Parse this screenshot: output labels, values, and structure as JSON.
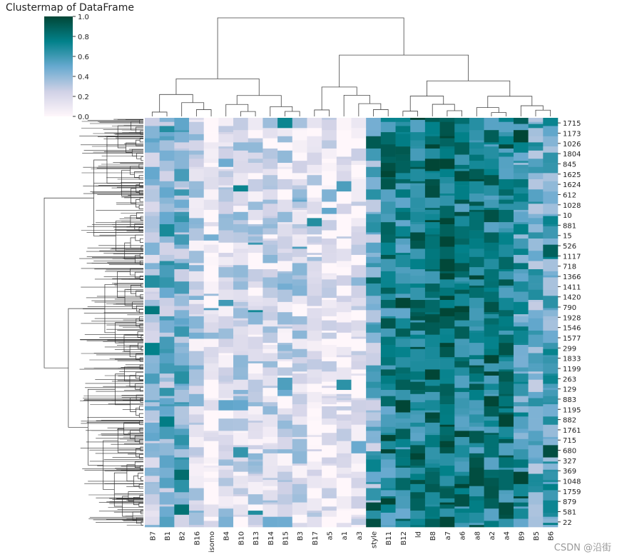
{
  "chart_data": {
    "type": "heatmap",
    "title": "Clustermap of DataFrame",
    "colormap": "PuBuGn",
    "colormap_stops": [
      "#fff7fb",
      "#d0d1e6",
      "#67a9cf",
      "#02818a",
      "#014636"
    ],
    "colorbar": {
      "ticks": [
        "0.0",
        "0.2",
        "0.4",
        "0.6",
        "0.8",
        "1.0"
      ],
      "range": [
        0,
        1
      ]
    },
    "columns": [
      "B7",
      "B1",
      "B2",
      "B16",
      "isomo",
      "B4",
      "B10",
      "B13",
      "B14",
      "B15",
      "B3",
      "B17",
      "a5",
      "a1",
      "a3",
      "style",
      "B11",
      "B12",
      "ld",
      "B8",
      "a7",
      "a6",
      "a8",
      "a2",
      "a4",
      "B9",
      "B5",
      "B6"
    ],
    "row_labels": [
      "1715",
      "1173",
      "1026",
      "1804",
      "845",
      "1625",
      "1624",
      "612",
      "1028",
      "10",
      "881",
      "15",
      "526",
      "1117",
      "718",
      "1366",
      "1411",
      "1420",
      "790",
      "1928",
      "1546",
      "1577",
      "299",
      "1833",
      "1199",
      "263",
      "129",
      "883",
      "1195",
      "882",
      "1761",
      "715",
      "680",
      "327",
      "369",
      "1048",
      "1759",
      "879",
      "581",
      "22"
    ],
    "column_means": [
      0.35,
      0.45,
      0.45,
      0.25,
      0.02,
      0.18,
      0.22,
      0.2,
      0.2,
      0.2,
      0.22,
      0.12,
      0.08,
      0.08,
      0.08,
      0.45,
      0.72,
      0.7,
      0.75,
      0.8,
      0.85,
      0.75,
      0.75,
      0.75,
      0.75,
      0.6,
      0.5,
      0.55
    ],
    "show_row_dendrogram": true,
    "show_col_dendrogram": true
  },
  "watermark": "CSDN @沿街"
}
